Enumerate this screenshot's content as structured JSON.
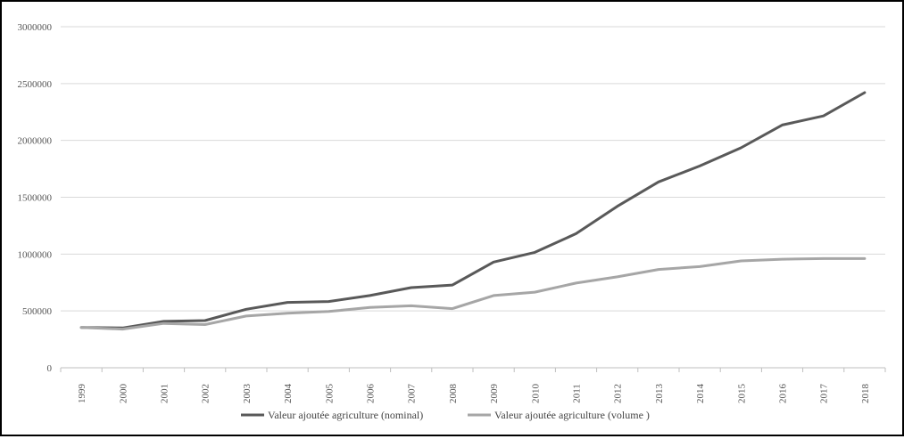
{
  "chart_data": {
    "type": "line",
    "title": "",
    "xlabel": "",
    "ylabel": "",
    "categories": [
      "1999",
      "2000",
      "2001",
      "2002",
      "2003",
      "2004",
      "2005",
      "2006",
      "2007",
      "2008",
      "2009",
      "2010",
      "2011",
      "2012",
      "2013",
      "2014",
      "2015",
      "2016",
      "2017",
      "2018"
    ],
    "ylim": [
      0,
      3000000
    ],
    "yticks": [
      "0",
      "500000",
      "1000000",
      "1500000",
      "2000000",
      "2500000",
      "3000000"
    ],
    "grid": "horizontal",
    "legend_position": "bottom",
    "series": [
      {
        "name": "Valeur ajoutée agriculture (nominal)",
        "color": "#595959",
        "values": [
          355000,
          350000,
          408000,
          415000,
          515000,
          575000,
          583000,
          635000,
          705000,
          728000,
          930000,
          1015000,
          1180000,
          1420000,
          1635000,
          1775000,
          1935000,
          2135000,
          2215000,
          2420000
        ]
      },
      {
        "name": "Valeur ajoutée agriculture (volume )",
        "color": "#a6a6a6",
        "values": [
          355000,
          340000,
          390000,
          380000,
          455000,
          480000,
          495000,
          530000,
          545000,
          520000,
          635000,
          665000,
          745000,
          800000,
          865000,
          890000,
          940000,
          955000,
          960000,
          960000
        ]
      }
    ]
  }
}
